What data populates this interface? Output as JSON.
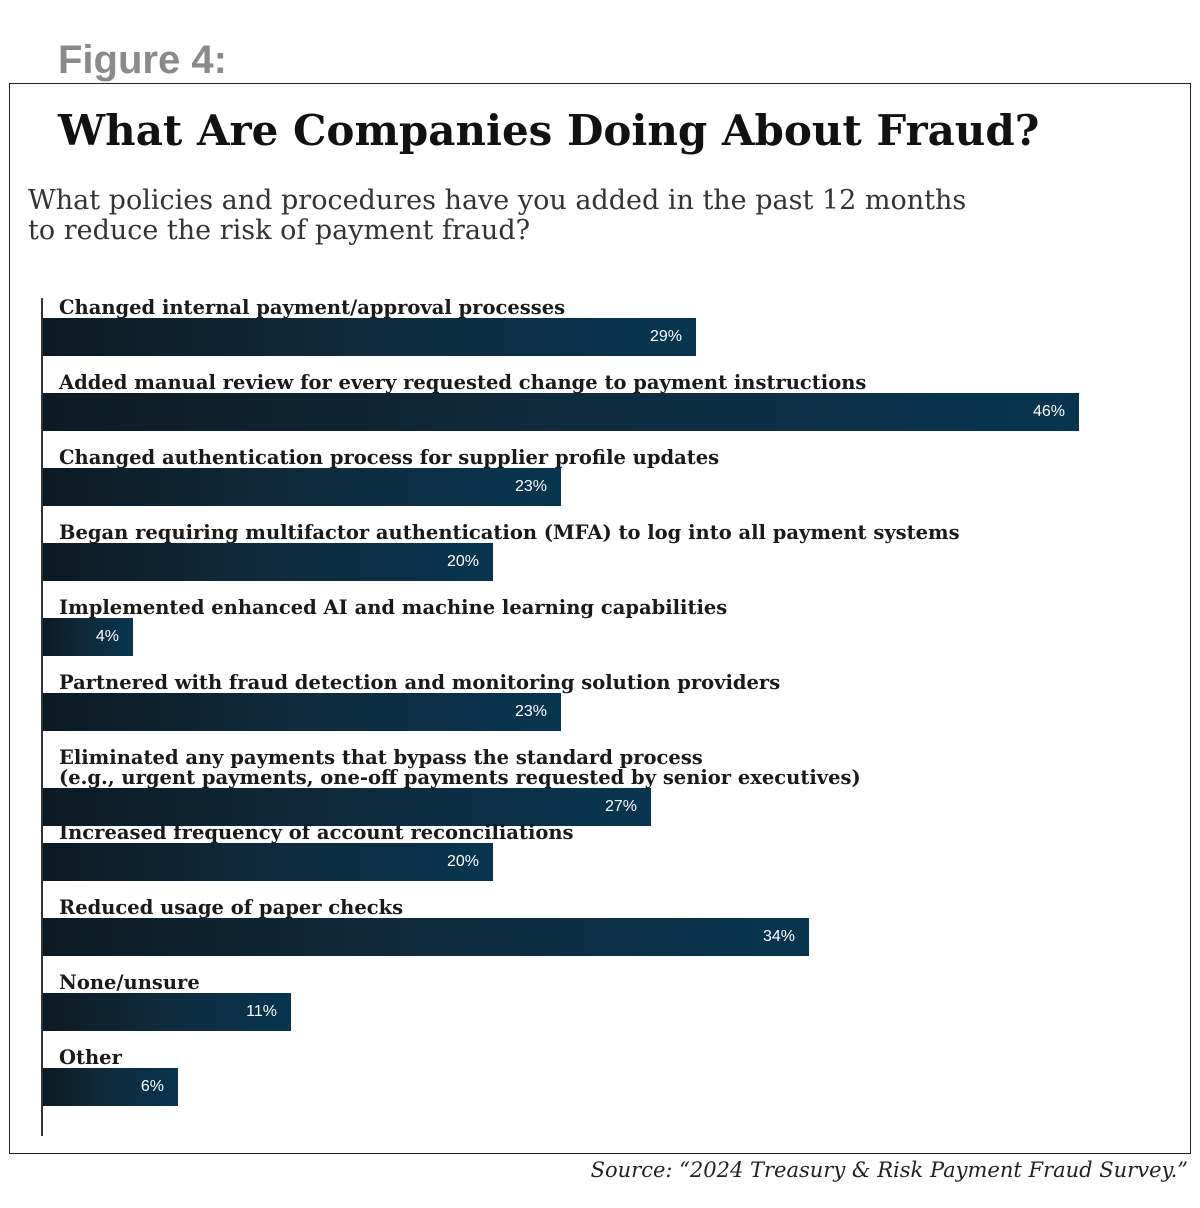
{
  "figure_label": "Figure 4:",
  "source": "Source: “2024 Treasury & Risk Payment Fraud Survey.”",
  "colors": {
    "bar_start": "#0c1a24",
    "bar_end": "#073550",
    "figure_label": "#8a8a8a"
  },
  "chart_data": {
    "type": "bar",
    "orientation": "horizontal",
    "title": "What Are Companies Doing About Fraud?",
    "subtitle_lines": [
      "What policies and procedures have you added in the past 12 months",
      "to reduce the risk of payment fraud?"
    ],
    "categories": [
      [
        "Changed internal payment/approval processes"
      ],
      [
        "Added manual review for every requested change to payment instructions"
      ],
      [
        "Changed authentication process for supplier profile updates"
      ],
      [
        "Began requiring multifactor authentication (MFA) to log into all payment systems"
      ],
      [
        "Implemented enhanced AI and machine learning capabilities"
      ],
      [
        "Partnered with fraud detection and monitoring solution providers"
      ],
      [
        "Eliminated any payments that bypass the standard process",
        "(e.g., urgent payments, one-off payments requested by senior executives)"
      ],
      [
        "Increased frequency of account reconciliations"
      ],
      [
        "Reduced usage of paper checks"
      ],
      [
        "None/unsure"
      ],
      [
        "Other"
      ]
    ],
    "values": [
      29,
      46,
      23,
      20,
      4,
      23,
      27,
      20,
      34,
      11,
      6
    ],
    "value_labels": [
      "29%",
      "46%",
      "23%",
      "20%",
      "4%",
      "23%",
      "27%",
      "20%",
      "34%",
      "11%",
      "6%"
    ],
    "unit": "%",
    "xlim": [
      0,
      46
    ],
    "grid": false,
    "legend": "none"
  }
}
